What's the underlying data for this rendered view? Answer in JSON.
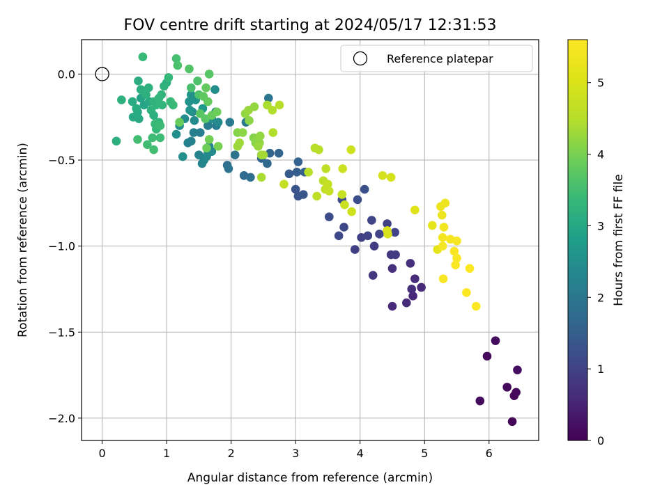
{
  "chart_data": {
    "type": "scatter",
    "title": "FOV centre drift starting at 2024/05/17 12:31:53",
    "xlabel": "Angular distance from reference (arcmin)",
    "ylabel": "Rotation from reference (arcmin)",
    "xlim": [
      -0.32,
      6.77
    ],
    "ylim": [
      -2.13,
      0.2
    ],
    "xticks": [
      0,
      1,
      2,
      3,
      4,
      5,
      6
    ],
    "yticks": [
      -2.0,
      -1.5,
      -1.0,
      -0.5,
      0.0
    ],
    "xtick_labels": [
      "0",
      "1",
      "2",
      "3",
      "4",
      "5",
      "6"
    ],
    "ytick_labels": [
      "−2.0",
      "−1.5",
      "−1.0",
      "−0.5",
      "0.0"
    ],
    "grid": true,
    "legend_position": "top-right",
    "reference": {
      "name": "Reference platepar",
      "x": 0.0,
      "y": 0.0
    },
    "colorbar": {
      "label": "Hours from first FF file",
      "colormap": "viridis",
      "range": [
        0,
        5.6
      ],
      "ticks": [
        0,
        1,
        2,
        3,
        4,
        5
      ],
      "tick_labels": [
        "0",
        "1",
        "2",
        "3",
        "4",
        "5"
      ]
    },
    "points": [
      [
        6.36,
        -2.02,
        0.05
      ],
      [
        6.39,
        -1.87,
        0.08
      ],
      [
        6.42,
        -1.85,
        0.1
      ],
      [
        6.28,
        -1.82,
        0.1
      ],
      [
        5.86,
        -1.9,
        0.15
      ],
      [
        5.97,
        -1.64,
        0.12
      ],
      [
        6.1,
        -1.55,
        0.15
      ],
      [
        6.44,
        -1.72,
        0.18
      ],
      [
        4.5,
        -1.35,
        0.6
      ],
      [
        4.72,
        -1.33,
        0.62
      ],
      [
        4.82,
        -1.29,
        0.58
      ],
      [
        4.95,
        -1.24,
        0.6
      ],
      [
        4.85,
        -1.19,
        0.64
      ],
      [
        4.8,
        -1.25,
        0.66
      ],
      [
        4.78,
        -1.1,
        0.68
      ],
      [
        4.5,
        -1.13,
        0.7
      ],
      [
        4.2,
        -1.17,
        0.82
      ],
      [
        4.48,
        -1.05,
        0.86
      ],
      [
        4.55,
        -1.05,
        0.9
      ],
      [
        4.22,
        -1.0,
        0.92
      ],
      [
        3.92,
        -1.02,
        0.95
      ],
      [
        4.02,
        -0.95,
        1.0
      ],
      [
        4.12,
        -0.94,
        1.02
      ],
      [
        4.3,
        -0.93,
        1.05
      ],
      [
        4.54,
        -0.92,
        1.02
      ],
      [
        4.42,
        -0.87,
        1.0
      ],
      [
        4.18,
        -0.85,
        1.05
      ],
      [
        3.75,
        -0.89,
        1.1
      ],
      [
        3.67,
        -0.94,
        1.12
      ],
      [
        3.52,
        -0.83,
        1.15
      ],
      [
        3.72,
        -0.73,
        1.18
      ],
      [
        3.96,
        -0.73,
        1.2
      ],
      [
        4.07,
        -0.67,
        1.25
      ],
      [
        3.0,
        -0.67,
        1.3
      ],
      [
        3.04,
        -0.71,
        1.33
      ],
      [
        3.12,
        -0.7,
        1.35
      ],
      [
        2.9,
        -0.58,
        1.45
      ],
      [
        3.02,
        -0.57,
        1.5
      ],
      [
        3.04,
        -0.51,
        1.55
      ],
      [
        3.14,
        -0.57,
        1.52
      ],
      [
        2.74,
        -0.46,
        1.6
      ],
      [
        2.6,
        -0.46,
        1.62
      ],
      [
        2.47,
        -0.49,
        1.65
      ],
      [
        2.56,
        -0.52,
        1.7
      ],
      [
        2.2,
        -0.59,
        1.75
      ],
      [
        2.3,
        -0.6,
        1.8
      ],
      [
        1.94,
        -0.53,
        1.85
      ],
      [
        1.96,
        -0.55,
        1.9
      ],
      [
        2.06,
        -0.47,
        1.92
      ],
      [
        2.58,
        -0.14,
        1.95
      ],
      [
        2.23,
        -0.28,
        2.0
      ],
      [
        1.98,
        -0.28,
        2.05
      ],
      [
        1.77,
        -0.3,
        2.1
      ],
      [
        1.64,
        -0.3,
        2.12
      ],
      [
        1.52,
        -0.34,
        2.15
      ],
      [
        1.42,
        -0.34,
        2.18
      ],
      [
        1.38,
        -0.39,
        2.2
      ],
      [
        1.33,
        -0.4,
        2.22
      ],
      [
        1.5,
        -0.47,
        2.25
      ],
      [
        1.55,
        -0.52,
        2.28
      ],
      [
        1.58,
        -0.5,
        2.3
      ],
      [
        1.66,
        -0.42,
        2.32
      ],
      [
        1.64,
        -0.46,
        2.34
      ],
      [
        1.7,
        -0.45,
        2.36
      ],
      [
        1.62,
        -0.48,
        2.38
      ],
      [
        1.4,
        -0.22,
        2.4
      ],
      [
        1.43,
        -0.27,
        2.42
      ],
      [
        1.28,
        -0.26,
        2.45
      ],
      [
        1.2,
        -0.3,
        2.48
      ],
      [
        1.15,
        -0.35,
        2.5
      ],
      [
        1.25,
        -0.48,
        2.52
      ],
      [
        1.38,
        -0.12,
        2.55
      ],
      [
        1.35,
        -0.16,
        2.58
      ],
      [
        1.36,
        -0.21,
        2.6
      ],
      [
        1.45,
        -0.15,
        2.62
      ],
      [
        1.75,
        -0.09,
        2.5
      ],
      [
        1.7,
        -0.26,
        2.45
      ],
      [
        1.8,
        -0.28,
        2.4
      ],
      [
        1.76,
        -0.22,
        2.2
      ],
      [
        1.56,
        -0.2,
        2.7
      ],
      [
        0.6,
        -0.14,
        2.9
      ],
      [
        0.65,
        -0.18,
        2.95
      ],
      [
        0.73,
        -0.16,
        3.0
      ],
      [
        0.55,
        -0.22,
        3.0
      ],
      [
        0.48,
        -0.25,
        3.02
      ],
      [
        0.57,
        -0.26,
        3.05
      ],
      [
        0.47,
        -0.16,
        3.08
      ],
      [
        0.53,
        -0.2,
        3.1
      ],
      [
        0.56,
        -0.04,
        3.12
      ],
      [
        0.6,
        -0.09,
        3.15
      ],
      [
        0.68,
        -0.12,
        3.18
      ],
      [
        0.72,
        -0.08,
        3.2
      ],
      [
        0.76,
        -0.21,
        3.22
      ],
      [
        0.8,
        -0.16,
        3.25
      ],
      [
        0.84,
        -0.18,
        3.28
      ],
      [
        0.88,
        -0.14,
        3.3
      ],
      [
        0.92,
        -0.12,
        3.3
      ],
      [
        0.88,
        -0.28,
        3.32
      ],
      [
        0.84,
        -0.32,
        3.35
      ],
      [
        0.82,
        -0.29,
        3.4
      ],
      [
        0.9,
        -0.3,
        3.42
      ],
      [
        0.78,
        -0.37,
        3.45
      ],
      [
        0.9,
        -0.37,
        3.45
      ],
      [
        0.7,
        -0.41,
        3.48
      ],
      [
        0.8,
        -0.44,
        3.5
      ],
      [
        0.55,
        -0.38,
        3.5
      ],
      [
        0.93,
        -0.18,
        3.3
      ],
      [
        0.96,
        -0.07,
        3.25
      ],
      [
        1.0,
        -0.05,
        3.2
      ],
      [
        1.03,
        -0.02,
        3.35
      ],
      [
        1.06,
        -0.16,
        3.38
      ],
      [
        1.1,
        -0.18,
        3.4
      ],
      [
        0.3,
        -0.15,
        3.2
      ],
      [
        0.22,
        -0.39,
        3.15
      ],
      [
        0.63,
        0.1,
        3.4
      ],
      [
        0.8,
        -0.24,
        3.15
      ],
      [
        1.15,
        0.09,
        3.55
      ],
      [
        1.17,
        0.05,
        3.6
      ],
      [
        1.35,
        0.03,
        3.65
      ],
      [
        1.38,
        -0.08,
        3.55
      ],
      [
        1.48,
        -0.04,
        3.6
      ],
      [
        1.5,
        -0.12,
        3.62
      ],
      [
        1.52,
        -0.23,
        3.7
      ],
      [
        1.6,
        -0.26,
        3.72
      ],
      [
        1.57,
        -0.13,
        3.75
      ],
      [
        1.66,
        0.0,
        3.7
      ],
      [
        1.61,
        -0.08,
        3.8
      ],
      [
        1.64,
        -0.16,
        3.82
      ],
      [
        1.7,
        -0.24,
        3.85
      ],
      [
        1.78,
        -0.22,
        3.9
      ],
      [
        1.62,
        -0.43,
        3.9
      ],
      [
        1.8,
        -0.42,
        4.0
      ],
      [
        1.2,
        -0.28,
        3.85
      ],
      [
        1.66,
        -0.38,
        3.95
      ],
      [
        2.1,
        -0.34,
        4.1
      ],
      [
        2.18,
        -0.34,
        4.15
      ],
      [
        2.22,
        -0.23,
        4.2
      ],
      [
        2.27,
        -0.21,
        4.25
      ],
      [
        2.28,
        -0.27,
        4.15
      ],
      [
        2.35,
        -0.37,
        4.1
      ],
      [
        2.38,
        -0.4,
        4.12
      ],
      [
        2.4,
        -0.38,
        4.15
      ],
      [
        2.44,
        -0.4,
        4.18
      ],
      [
        2.45,
        -0.36,
        4.2
      ],
      [
        2.36,
        -0.19,
        4.22
      ],
      [
        2.42,
        -0.42,
        4.25
      ],
      [
        2.47,
        -0.47,
        4.3
      ],
      [
        2.5,
        -0.47,
        4.35
      ],
      [
        2.47,
        -0.6,
        4.4
      ],
      [
        2.56,
        -0.18,
        4.4
      ],
      [
        2.64,
        -0.21,
        4.45
      ],
      [
        2.75,
        -0.18,
        4.5
      ],
      [
        2.65,
        -0.34,
        4.45
      ],
      [
        2.13,
        -0.4,
        4.3
      ],
      [
        2.1,
        -0.42,
        4.28
      ],
      [
        3.3,
        -0.43,
        4.5
      ],
      [
        3.36,
        -0.44,
        4.55
      ],
      [
        3.43,
        -0.62,
        4.6
      ],
      [
        3.47,
        -0.55,
        4.62
      ],
      [
        3.2,
        -0.57,
        4.55
      ],
      [
        3.33,
        -0.71,
        4.62
      ],
      [
        3.46,
        -0.67,
        4.65
      ],
      [
        3.5,
        -0.64,
        4.68
      ],
      [
        3.52,
        -0.68,
        4.7
      ],
      [
        3.72,
        -0.7,
        4.75
      ],
      [
        3.76,
        -0.76,
        4.78
      ],
      [
        3.73,
        -0.55,
        4.8
      ],
      [
        3.86,
        -0.44,
        4.82
      ],
      [
        3.87,
        -0.8,
        4.85
      ],
      [
        2.82,
        -0.64,
        4.7
      ],
      [
        4.35,
        -0.59,
        4.9
      ],
      [
        4.48,
        -0.6,
        4.92
      ],
      [
        4.43,
        -0.93,
        4.95
      ],
      [
        4.42,
        -0.91,
        4.98
      ],
      [
        4.85,
        -0.79,
        5.1
      ],
      [
        5.12,
        -0.88,
        5.2
      ],
      [
        5.2,
        -1.02,
        5.18
      ],
      [
        5.25,
        -0.77,
        5.3
      ],
      [
        5.27,
        -0.82,
        5.32
      ],
      [
        5.32,
        -0.75,
        5.35
      ],
      [
        5.3,
        -0.89,
        5.4
      ],
      [
        5.28,
        -0.95,
        5.42
      ],
      [
        5.28,
        -1.0,
        5.45
      ],
      [
        5.4,
        -0.96,
        5.48
      ],
      [
        5.5,
        -0.97,
        5.5
      ],
      [
        5.46,
        -1.03,
        5.52
      ],
      [
        5.5,
        -1.07,
        5.55
      ],
      [
        5.48,
        -1.11,
        5.55
      ],
      [
        5.7,
        -1.13,
        5.58
      ],
      [
        5.65,
        -1.27,
        5.6
      ],
      [
        5.8,
        -1.35,
        5.6
      ],
      [
        5.29,
        -1.19,
        5.5
      ]
    ]
  }
}
